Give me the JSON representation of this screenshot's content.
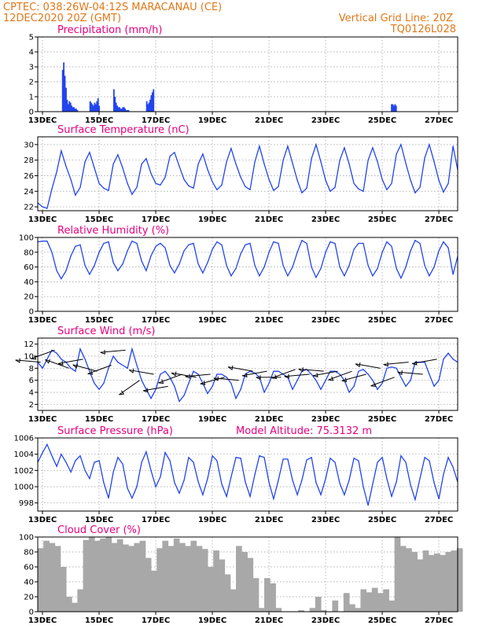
{
  "header": {
    "line1_left": "CPTEC:   038:26W-04:12S   MARACANAU (CE)",
    "line2_left": "12DEC2020 20Z (GMT)",
    "line1_right": "Vertical Grid Line: 20Z",
    "line2_right": "TQ0126L028"
  },
  "colors": {
    "header": "#e07818",
    "title": "#e6007e",
    "series": "#2244ee",
    "cloud": "#a8a8a8",
    "grid": "#9a9a9a",
    "arrow": "#000000"
  },
  "x_axis": {
    "ticks": [
      "13DEC",
      "15DEC",
      "17DEC",
      "19DEC",
      "21DEC",
      "23DEC",
      "25DEC",
      "27DEC"
    ]
  },
  "panels": [
    {
      "key": "precip",
      "title": "Precipitation (mm/h)",
      "extra": "",
      "ylim": [
        0,
        5
      ],
      "yticks": [
        "0",
        "1",
        "2",
        "3",
        "4",
        "5"
      ]
    },
    {
      "key": "temp",
      "title": "Surface Temperature (nC)",
      "extra": "",
      "ylim": [
        21.5,
        31
      ],
      "yticks": [
        "22",
        "24",
        "26",
        "28",
        "30"
      ]
    },
    {
      "key": "rh",
      "title": "Relative Humidity (%)",
      "extra": "",
      "ylim": [
        0,
        100
      ],
      "yticks": [
        "0",
        "20",
        "40",
        "60",
        "80",
        "100"
      ]
    },
    {
      "key": "wind",
      "title": "Surface Wind (m/s)",
      "extra": "",
      "ylim": [
        1,
        13
      ],
      "yticks": [
        "2",
        "4",
        "6",
        "8",
        "10",
        "12"
      ]
    },
    {
      "key": "pres",
      "title": "Surface Pressure (hPa)",
      "extra": "Model Altitude: 75.3132 m",
      "ylim": [
        997,
        1006
      ],
      "yticks": [
        "998",
        "1000",
        "1002",
        "1004",
        "1006"
      ]
    },
    {
      "key": "cloud",
      "title": "Cloud Cover (%)",
      "extra": "",
      "ylim": [
        0,
        100
      ],
      "yticks": [
        "0",
        "20",
        "40",
        "60",
        "80",
        "100"
      ]
    }
  ],
  "chart_data": [
    {
      "type": "bar",
      "title": "Precipitation (mm/h)",
      "unit": "mm/h",
      "ylim": [
        0,
        5
      ],
      "x_day": [
        0.88,
        0.92,
        0.96,
        1.0,
        1.04,
        1.08,
        1.12,
        1.16,
        1.2,
        1.24,
        1.28,
        1.32,
        1.36,
        1.4,
        1.85,
        1.89,
        1.93,
        1.97,
        2.01,
        2.05,
        2.09,
        2.13,
        2.17,
        2.69,
        2.73,
        2.77,
        2.81,
        2.85,
        2.89,
        2.93,
        2.97,
        3.01,
        3.05,
        3.09,
        3.13,
        3.17,
        3.21,
        3.85,
        3.89,
        3.93,
        3.97,
        4.01,
        4.05,
        4.09,
        12.5,
        12.54,
        12.58,
        12.62,
        12.66
      ],
      "values": [
        2.8,
        3.3,
        2.4,
        1.6,
        0.8,
        0.5,
        0.7,
        0.6,
        0.4,
        0.3,
        0.3,
        0.2,
        0.2,
        0.1,
        0.7,
        0.6,
        0.5,
        0.4,
        0.6,
        0.5,
        0.7,
        0.9,
        0.4,
        1.5,
        1.0,
        0.6,
        0.4,
        0.3,
        0.3,
        0.2,
        0.2,
        0.3,
        0.3,
        0.2,
        0.1,
        0.1,
        0.1,
        0.7,
        0.5,
        0.6,
        0.8,
        1.1,
        1.3,
        1.5,
        0.5,
        0.5,
        0.4,
        0.5,
        0.4
      ]
    },
    {
      "type": "line",
      "title": "Surface Temperature (nC)",
      "unit": "nC",
      "ylim": [
        21.5,
        31
      ],
      "x_day": [
        0.0,
        0.17,
        0.33,
        0.5,
        0.67,
        0.83,
        1.0,
        1.17,
        1.33,
        1.5,
        1.67,
        1.83,
        2.0,
        2.17,
        2.33,
        2.5,
        2.67,
        2.83,
        3.0,
        3.17,
        3.33,
        3.5,
        3.67,
        3.83,
        4.0,
        4.17,
        4.33,
        4.5,
        4.67,
        4.83,
        5.0,
        5.17,
        5.33,
        5.5,
        5.67,
        5.83,
        6.0,
        6.17,
        6.33,
        6.5,
        6.67,
        6.83,
        7.0,
        7.17,
        7.33,
        7.5,
        7.67,
        7.83,
        8.0,
        8.17,
        8.33,
        8.5,
        8.67,
        8.83,
        9.0,
        9.17,
        9.33,
        9.5,
        9.67,
        9.83,
        10.0,
        10.17,
        10.33,
        10.5,
        10.67,
        10.83,
        11.0,
        11.17,
        11.33,
        11.5,
        11.67,
        11.83,
        12.0,
        12.17,
        12.33,
        12.5,
        12.67,
        12.83,
        13.0,
        13.17,
        13.33,
        13.5,
        13.67,
        13.83,
        14.0,
        14.17,
        14.33,
        14.5,
        14.67,
        14.83
      ],
      "values": [
        22.5,
        22.0,
        21.8,
        24.3,
        26.5,
        29.2,
        27.2,
        25.5,
        23.5,
        24.5,
        27.8,
        29.0,
        27.0,
        25.0,
        24.4,
        24.1,
        27.5,
        28.7,
        27.0,
        25.0,
        23.6,
        24.5,
        27.5,
        28.2,
        26.3,
        25.0,
        24.8,
        25.8,
        28.5,
        29.0,
        27.2,
        25.5,
        24.7,
        24.4,
        27.5,
        28.8,
        26.8,
        25.2,
        24.2,
        24.8,
        27.8,
        29.5,
        27.5,
        25.8,
        24.6,
        24.2,
        27.8,
        29.8,
        27.5,
        25.5,
        24.1,
        24.6,
        28.0,
        29.8,
        27.6,
        25.4,
        23.8,
        24.4,
        28.2,
        30.0,
        27.8,
        25.4,
        24.0,
        24.5,
        28.0,
        29.6,
        27.5,
        25.0,
        24.3,
        24.0,
        28.0,
        29.6,
        27.8,
        25.5,
        24.2,
        25.0,
        28.8,
        30.0,
        27.6,
        25.4,
        23.8,
        24.5,
        28.3,
        30.0,
        27.8,
        25.4,
        23.9,
        25.0,
        29.8,
        26.8
      ]
    },
    {
      "type": "line",
      "title": "Relative Humidity (%)",
      "unit": "%",
      "ylim": [
        0,
        100
      ],
      "x_day": [
        0.0,
        0.17,
        0.33,
        0.5,
        0.67,
        0.83,
        1.0,
        1.17,
        1.33,
        1.5,
        1.67,
        1.83,
        2.0,
        2.17,
        2.33,
        2.5,
        2.67,
        2.83,
        3.0,
        3.17,
        3.33,
        3.5,
        3.67,
        3.83,
        4.0,
        4.17,
        4.33,
        4.5,
        4.67,
        4.83,
        5.0,
        5.17,
        5.33,
        5.5,
        5.67,
        5.83,
        6.0,
        6.17,
        6.33,
        6.5,
        6.67,
        6.83,
        7.0,
        7.17,
        7.33,
        7.5,
        7.67,
        7.83,
        8.0,
        8.17,
        8.33,
        8.5,
        8.67,
        8.83,
        9.0,
        9.17,
        9.33,
        9.5,
        9.67,
        9.83,
        10.0,
        10.17,
        10.33,
        10.5,
        10.67,
        10.83,
        11.0,
        11.17,
        11.33,
        11.5,
        11.67,
        11.83,
        12.0,
        12.17,
        12.33,
        12.5,
        12.67,
        12.83,
        13.0,
        13.17,
        13.33,
        13.5,
        13.67,
        13.83,
        14.0,
        14.17,
        14.33,
        14.5,
        14.67,
        14.83
      ],
      "values": [
        94.0,
        95.0,
        95.0,
        80.0,
        55.0,
        44.0,
        55.0,
        75.0,
        88.0,
        90.0,
        62.0,
        50.0,
        62.0,
        80.0,
        92.0,
        94.0,
        66.0,
        55.0,
        64.0,
        82.0,
        95.0,
        92.0,
        68.0,
        55.0,
        75.0,
        88.0,
        92.0,
        86.0,
        62.0,
        52.0,
        64.0,
        82.0,
        90.0,
        92.0,
        64.0,
        52.0,
        66.0,
        84.0,
        94.0,
        90.0,
        62.0,
        48.0,
        58.0,
        78.0,
        90.0,
        92.0,
        62.0,
        48.0,
        60.0,
        80.0,
        94.0,
        92.0,
        62.0,
        48.0,
        60.0,
        80.0,
        96.0,
        92.0,
        60.0,
        46.0,
        58.0,
        80.0,
        94.0,
        92.0,
        60.0,
        48.0,
        62.0,
        84.0,
        92.0,
        92.0,
        62.0,
        48.0,
        58.0,
        80.0,
        94.0,
        88.0,
        58.0,
        45.0,
        60.0,
        82.0,
        96.0,
        92.0,
        62.0,
        48.0,
        60.0,
        82.0,
        94.0,
        86.0,
        50.0,
        74.0
      ]
    },
    {
      "type": "line",
      "title": "Surface Wind (m/s)",
      "unit": "m/s",
      "ylim": [
        1,
        13
      ],
      "x_day": [
        0.0,
        0.17,
        0.33,
        0.5,
        0.67,
        0.83,
        1.0,
        1.17,
        1.33,
        1.5,
        1.67,
        1.83,
        2.0,
        2.17,
        2.33,
        2.5,
        2.67,
        2.83,
        3.0,
        3.17,
        3.33,
        3.5,
        3.67,
        3.83,
        4.0,
        4.17,
        4.33,
        4.5,
        4.67,
        4.83,
        5.0,
        5.17,
        5.33,
        5.5,
        5.67,
        5.83,
        6.0,
        6.17,
        6.33,
        6.5,
        6.67,
        6.83,
        7.0,
        7.17,
        7.33,
        7.5,
        7.67,
        7.83,
        8.0,
        8.17,
        8.33,
        8.5,
        8.67,
        8.83,
        9.0,
        9.17,
        9.33,
        9.5,
        9.67,
        9.83,
        10.0,
        10.17,
        10.33,
        10.5,
        10.67,
        10.83,
        11.0,
        11.17,
        11.33,
        11.5,
        11.67,
        11.83,
        12.0,
        12.17,
        12.33,
        12.5,
        12.67,
        12.83,
        13.0,
        13.17,
        13.33,
        13.5,
        13.67,
        13.83,
        14.0,
        14.17,
        14.33,
        14.5,
        14.67,
        14.83
      ],
      "values": [
        9.0,
        8.0,
        9.5,
        11.0,
        10.5,
        9.5,
        9.0,
        8.0,
        7.5,
        11.2,
        9.5,
        7.5,
        5.5,
        4.5,
        5.5,
        8.0,
        10.0,
        9.0,
        8.5,
        8.0,
        11.2,
        8.5,
        6.0,
        4.5,
        3.0,
        4.5,
        7.0,
        7.5,
        6.5,
        5.0,
        2.5,
        3.5,
        5.5,
        7.5,
        7.0,
        5.5,
        3.8,
        5.0,
        7.0,
        7.0,
        6.5,
        5.5,
        3.0,
        4.5,
        7.0,
        7.5,
        7.2,
        6.5,
        4.0,
        5.5,
        7.5,
        7.5,
        7.0,
        6.5,
        4.5,
        6.0,
        7.5,
        7.8,
        7.0,
        6.0,
        4.5,
        6.0,
        7.5,
        7.5,
        7.0,
        6.0,
        4.0,
        5.0,
        7.5,
        7.8,
        7.0,
        6.0,
        4.5,
        5.5,
        8.0,
        8.2,
        8.0,
        6.5,
        5.0,
        6.0,
        9.0,
        9.0,
        9.0,
        7.0,
        5.0,
        6.0,
        9.5,
        10.5,
        9.5,
        9.0
      ],
      "arrows": {
        "x_day": [
          0.1,
          0.6,
          1.1,
          1.6,
          2.1,
          2.6,
          3.1,
          3.6,
          4.1,
          4.6,
          5.1,
          5.6,
          6.1,
          6.6,
          7.1,
          7.6,
          8.1,
          8.6,
          9.1,
          9.6,
          10.1,
          10.6,
          11.1,
          11.6,
          12.1,
          12.6,
          13.1,
          13.6,
          14.1
        ],
        "speed": [
          9.0,
          11.0,
          8.0,
          9.5,
          7.5,
          8.5,
          11.0,
          6.0,
          7.0,
          5.0,
          7.0,
          6.5,
          7.0,
          6.5,
          6.0,
          7.5,
          7.5,
          6.5,
          7.8,
          7.0,
          7.5,
          7.5,
          7.5,
          7.0,
          8.0,
          6.5,
          9.0,
          7.0,
          9.5
        ],
        "dir_deg": [
          175,
          200,
          160,
          190,
          165,
          200,
          185,
          215,
          170,
          190,
          200,
          170,
          185,
          195,
          175,
          170,
          190,
          180,
          200,
          185,
          175,
          190,
          200,
          195,
          170,
          200,
          185,
          175,
          190
        ]
      }
    },
    {
      "type": "line",
      "title": "Surface Pressure (hPa)",
      "unit": "hPa",
      "ylim": [
        997,
        1006
      ],
      "x_day": [
        0.0,
        0.17,
        0.33,
        0.5,
        0.67,
        0.83,
        1.0,
        1.17,
        1.33,
        1.5,
        1.67,
        1.83,
        2.0,
        2.17,
        2.33,
        2.5,
        2.67,
        2.83,
        3.0,
        3.17,
        3.33,
        3.5,
        3.67,
        3.83,
        4.0,
        4.17,
        4.33,
        4.5,
        4.67,
        4.83,
        5.0,
        5.17,
        5.33,
        5.5,
        5.67,
        5.83,
        6.0,
        6.17,
        6.33,
        6.5,
        6.67,
        6.83,
        7.0,
        7.17,
        7.33,
        7.5,
        7.67,
        7.83,
        8.0,
        8.17,
        8.33,
        8.5,
        8.67,
        8.83,
        9.0,
        9.17,
        9.33,
        9.5,
        9.67,
        9.83,
        10.0,
        10.17,
        10.33,
        10.5,
        10.67,
        10.83,
        11.0,
        11.17,
        11.33,
        11.5,
        11.67,
        11.83,
        12.0,
        12.17,
        12.33,
        12.5,
        12.67,
        12.83,
        13.0,
        13.17,
        13.33,
        13.5,
        13.67,
        13.83,
        14.0,
        14.17,
        14.33,
        14.5,
        14.67,
        14.83
      ],
      "values": [
        1003.0,
        1004.2,
        1005.2,
        1003.8,
        1002.5,
        1004.0,
        1003.0,
        1001.8,
        1003.2,
        1003.8,
        1002.0,
        1001.0,
        1003.0,
        1003.2,
        1000.5,
        998.6,
        1001.8,
        1003.6,
        1002.8,
        999.8,
        998.6,
        1000.0,
        1003.0,
        1004.3,
        1002.0,
        1000.0,
        1001.2,
        1004.2,
        1003.2,
        1000.5,
        999.2,
        1000.8,
        1003.6,
        1003.0,
        1000.6,
        999.0,
        1001.0,
        1003.8,
        1003.2,
        1000.3,
        998.8,
        1001.2,
        1003.6,
        1003.5,
        1000.6,
        998.8,
        1001.5,
        1003.8,
        1003.6,
        1000.5,
        998.5,
        1000.8,
        1003.4,
        1003.4,
        1000.8,
        999.0,
        1000.8,
        1003.3,
        1003.6,
        1000.5,
        999.0,
        1001.0,
        1003.5,
        1003.0,
        1000.4,
        999.0,
        1000.8,
        1003.5,
        1003.2,
        1000.0,
        997.7,
        1000.3,
        1003.0,
        1003.6,
        1001.0,
        998.8,
        1000.6,
        1003.8,
        1003.0,
        1000.2,
        998.4,
        1001.0,
        1003.6,
        1003.2,
        1000.5,
        998.5,
        1001.5,
        1003.6,
        1002.4,
        1000.6
      ]
    },
    {
      "type": "area",
      "title": "Cloud Cover (%)",
      "unit": "%",
      "ylim": [
        0,
        100
      ],
      "x_day": [
        0.0,
        0.2,
        0.4,
        0.6,
        0.8,
        1.0,
        1.2,
        1.4,
        1.6,
        1.8,
        2.0,
        2.2,
        2.4,
        2.6,
        2.8,
        3.0,
        3.2,
        3.4,
        3.6,
        3.8,
        4.0,
        4.2,
        4.4,
        4.6,
        4.8,
        5.0,
        5.2,
        5.4,
        5.6,
        5.8,
        6.0,
        6.2,
        6.4,
        6.6,
        6.8,
        7.0,
        7.2,
        7.4,
        7.6,
        7.8,
        8.0,
        8.2,
        8.4,
        8.6,
        8.8,
        9.0,
        9.2,
        9.4,
        9.6,
        9.8,
        10.0,
        10.2,
        10.4,
        10.6,
        10.8,
        11.0,
        11.2,
        11.4,
        11.6,
        11.8,
        12.0,
        12.2,
        12.4,
        12.6,
        12.8,
        13.0,
        13.2,
        13.4,
        13.6,
        13.8,
        14.0,
        14.2,
        14.4,
        14.6,
        14.8
      ],
      "values": [
        85.0,
        95.0,
        92.0,
        88.0,
        60.0,
        20.0,
        12.0,
        30.0,
        96.0,
        100.0,
        95.0,
        98.0,
        100.0,
        92.0,
        97.0,
        90.0,
        88.0,
        92.0,
        95.0,
        72.0,
        55.0,
        85.0,
        95.0,
        88.0,
        98.0,
        92.0,
        88.0,
        95.0,
        88.0,
        84.0,
        60.0,
        82.0,
        70.0,
        50.0,
        30.0,
        88.0,
        80.0,
        72.0,
        45.0,
        5.0,
        45.0,
        38.0,
        5.0,
        0.0,
        0.0,
        0.0,
        2.0,
        0.0,
        5.0,
        20.0,
        2.0,
        0.0,
        15.0,
        0.0,
        25.0,
        10.0,
        5.0,
        30.0,
        26.0,
        32.0,
        25.0,
        30.0,
        15.0,
        100.0,
        88.0,
        85.0,
        80.0,
        70.0,
        82.0,
        76.0,
        78.0,
        76.0,
        80.0,
        82.0,
        85.0
      ]
    }
  ]
}
